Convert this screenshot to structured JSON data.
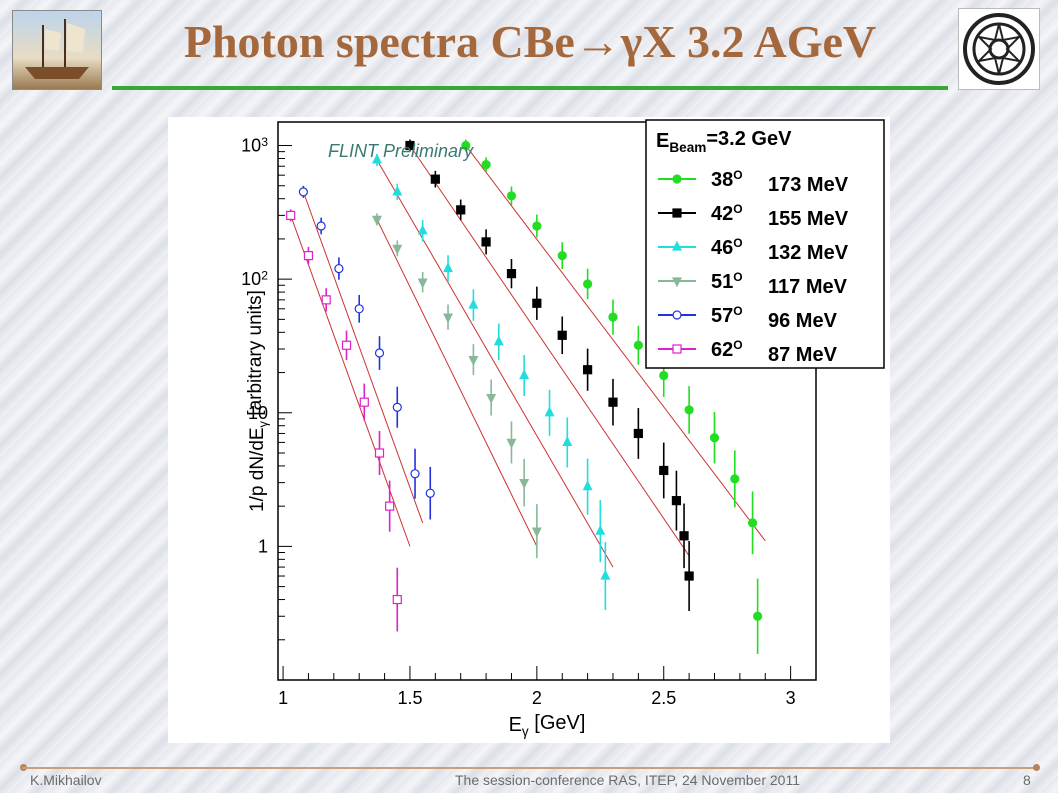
{
  "header": {
    "title": "Photon spectra CBe→γX 3.2 AGeV"
  },
  "footer": {
    "author": "K.Mikhailov",
    "event": "The session-conference RAS, ITEP,  24 November 2011",
    "page": "8"
  },
  "chart_data": {
    "type": "scatter",
    "annotation": "FLINT Preliminary",
    "xlabel": "E_γ [GeV]",
    "ylabel": "1/p dN/dE_γ [arbitrary units]",
    "log_y": true,
    "xlim": [
      0.98,
      3.1
    ],
    "ylim": [
      0.1,
      1500
    ],
    "x_ticks": [
      {
        "v": 1,
        "label": "1"
      },
      {
        "v": 1.5,
        "label": "1.5"
      },
      {
        "v": 2,
        "label": "2"
      },
      {
        "v": 2.5,
        "label": "2.5"
      },
      {
        "v": 3,
        "label": "3"
      }
    ],
    "y_ticks": [
      {
        "v": 1,
        "label": "1"
      },
      {
        "v": 10,
        "label": "10"
      },
      {
        "v": 100,
        "label": "10^2"
      },
      {
        "v": 1000,
        "label": "10^3"
      }
    ],
    "legend_title": "E_Beam=3.2 GeV",
    "legend_position": "top-right",
    "series": [
      {
        "name": "38° 173 MeV",
        "angle": "38",
        "value": "173 MeV",
        "color": "#22dd22",
        "marker": "circle-filled",
        "x0": 1.72,
        "y0": 1000,
        "x1": 2.9,
        "y1": 1.1,
        "points": [
          [
            1.72,
            1000
          ],
          [
            1.8,
            720
          ],
          [
            1.9,
            420
          ],
          [
            2.0,
            250
          ],
          [
            2.1,
            150
          ],
          [
            2.2,
            92
          ],
          [
            2.3,
            52
          ],
          [
            2.4,
            32
          ],
          [
            2.5,
            19
          ],
          [
            2.6,
            10.5
          ],
          [
            2.7,
            6.5
          ],
          [
            2.78,
            3.2
          ],
          [
            2.85,
            1.5
          ],
          [
            2.87,
            0.3
          ]
        ]
      },
      {
        "name": "42° 155 MeV",
        "angle": "42",
        "value": "155 MeV",
        "color": "#000000",
        "marker": "square-filled",
        "x0": 1.5,
        "y0": 1000,
        "x1": 2.6,
        "y1": 0.85,
        "points": [
          [
            1.5,
            1000
          ],
          [
            1.6,
            560
          ],
          [
            1.7,
            330
          ],
          [
            1.8,
            190
          ],
          [
            1.9,
            110
          ],
          [
            2.0,
            66
          ],
          [
            2.1,
            38
          ],
          [
            2.2,
            21
          ],
          [
            2.3,
            12
          ],
          [
            2.4,
            7
          ],
          [
            2.5,
            3.7
          ],
          [
            2.55,
            2.2
          ],
          [
            2.58,
            1.2
          ],
          [
            2.6,
            0.6
          ]
        ]
      },
      {
        "name": "46° 132 MeV",
        "angle": "46",
        "value": "132 MeV",
        "color": "#22dddd",
        "marker": "triangle-up",
        "x0": 1.37,
        "y0": 780,
        "x1": 2.3,
        "y1": 0.7,
        "points": [
          [
            1.37,
            780
          ],
          [
            1.45,
            450
          ],
          [
            1.55,
            230
          ],
          [
            1.65,
            120
          ],
          [
            1.75,
            64
          ],
          [
            1.85,
            34
          ],
          [
            1.95,
            19
          ],
          [
            2.05,
            10
          ],
          [
            2.12,
            6
          ],
          [
            2.2,
            2.8
          ],
          [
            2.25,
            1.3
          ],
          [
            2.27,
            0.6
          ]
        ]
      },
      {
        "name": "51° 117 MeV",
        "angle": "51",
        "value": "117 MeV",
        "color": "#88b898",
        "marker": "triangle-down",
        "x0": 1.37,
        "y0": 280,
        "x1": 2.0,
        "y1": 1.0,
        "points": [
          [
            1.37,
            280
          ],
          [
            1.45,
            170
          ],
          [
            1.55,
            95
          ],
          [
            1.65,
            52
          ],
          [
            1.75,
            25
          ],
          [
            1.82,
            13
          ],
          [
            1.9,
            6
          ],
          [
            1.95,
            3
          ],
          [
            2.0,
            1.3
          ]
        ]
      },
      {
        "name": "57° 96 MeV",
        "angle": "57",
        "value": "96 MeV",
        "color": "#2233dd",
        "marker": "circle-open",
        "x0": 1.08,
        "y0": 450,
        "x1": 1.55,
        "y1": 1.5,
        "points": [
          [
            1.08,
            450
          ],
          [
            1.15,
            250
          ],
          [
            1.22,
            120
          ],
          [
            1.3,
            60
          ],
          [
            1.38,
            28
          ],
          [
            1.45,
            11
          ],
          [
            1.52,
            3.5
          ],
          [
            1.58,
            2.5
          ]
        ]
      },
      {
        "name": "62° 87 MeV",
        "angle": "62",
        "value": "87 MeV",
        "color": "#dd22cc",
        "marker": "square-open",
        "x0": 1.03,
        "y0": 300,
        "x1": 1.5,
        "y1": 1.0,
        "points": [
          [
            1.03,
            300
          ],
          [
            1.1,
            150
          ],
          [
            1.17,
            70
          ],
          [
            1.25,
            32
          ],
          [
            1.32,
            12
          ],
          [
            1.38,
            5
          ],
          [
            1.42,
            2
          ],
          [
            1.45,
            0.4
          ]
        ]
      }
    ]
  }
}
